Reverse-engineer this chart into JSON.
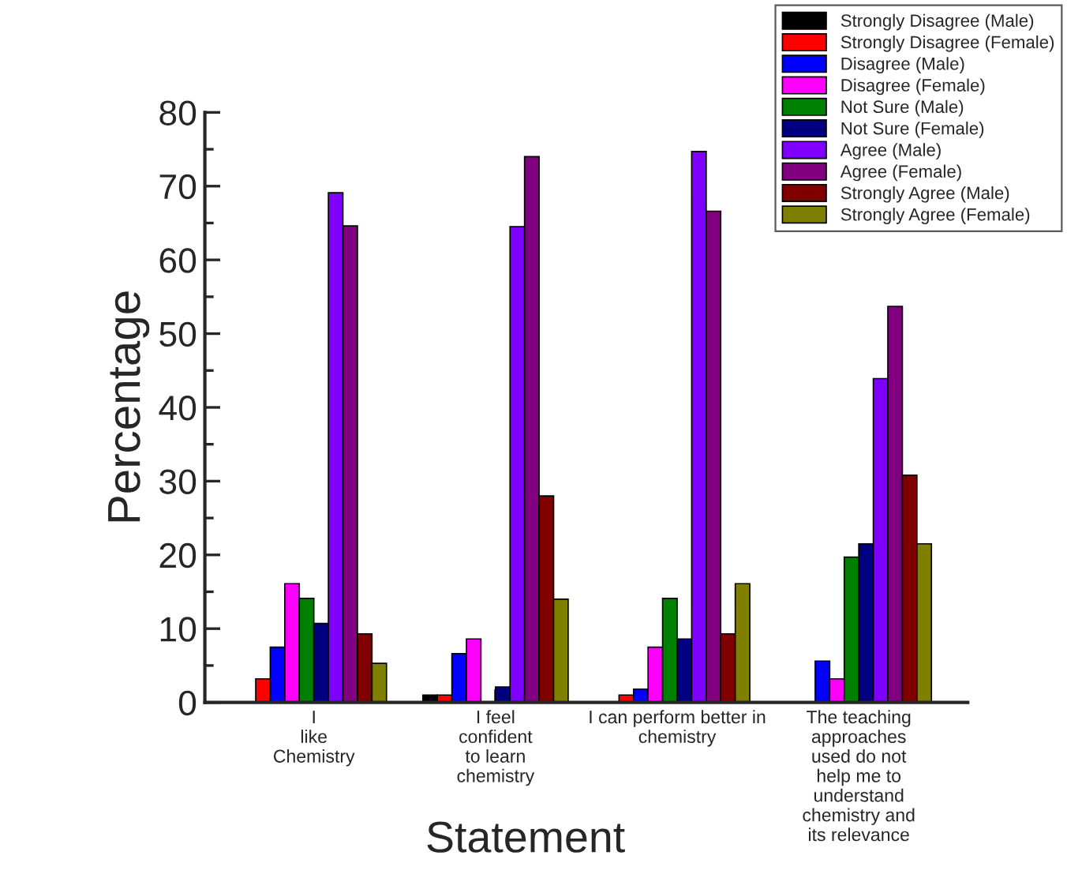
{
  "chart_data": {
    "type": "bar",
    "xlabel": "Statement",
    "ylabel": "Percentage",
    "categories": [
      "I like Chemistry",
      "I feel confident to learn chemistry",
      "I can perform better in chemistry",
      "The teaching approaches used do not help me to understand chemistry and its relevance"
    ],
    "series": [
      {
        "name": "Strongly Disagree (Male)",
        "color": "#000000",
        "values": [
          0,
          1,
          0,
          0
        ]
      },
      {
        "name": "Strongly Disagree (Female)",
        "color": "#ff0000",
        "values": [
          3.2,
          1,
          1,
          0
        ]
      },
      {
        "name": "Disagree (Male)",
        "color": "#0000ff",
        "values": [
          7.5,
          6.6,
          1.8,
          5.6
        ]
      },
      {
        "name": "Disagree (Female)",
        "color": "#ff00ff",
        "values": [
          16.1,
          8.6,
          7.5,
          3.2
        ]
      },
      {
        "name": "Not Sure (Male)",
        "color": "#008000",
        "values": [
          14.1,
          0,
          14.1,
          19.7
        ]
      },
      {
        "name": "Not Sure (Female)",
        "color": "#000080",
        "values": [
          10.7,
          2.1,
          8.6,
          21.5
        ]
      },
      {
        "name": "Agree (Male)",
        "color": "#8000ff",
        "values": [
          69.1,
          64.5,
          74.7,
          43.9
        ]
      },
      {
        "name": "Agree (Female)",
        "color": "#800080",
        "values": [
          64.6,
          74,
          66.6,
          53.7
        ]
      },
      {
        "name": "Strongly Agree (Male)",
        "color": "#800000",
        "values": [
          9.3,
          28,
          9.3,
          30.8
        ]
      },
      {
        "name": "Strongly Agree (Female)",
        "color": "#808000",
        "values": [
          5.3,
          14,
          16.1,
          21.5
        ]
      }
    ],
    "ylim": [
      0,
      80
    ],
    "yticks": [
      0,
      10,
      20,
      30,
      40,
      50,
      60,
      70,
      80
    ],
    "grid": false,
    "legend": "top right"
  }
}
